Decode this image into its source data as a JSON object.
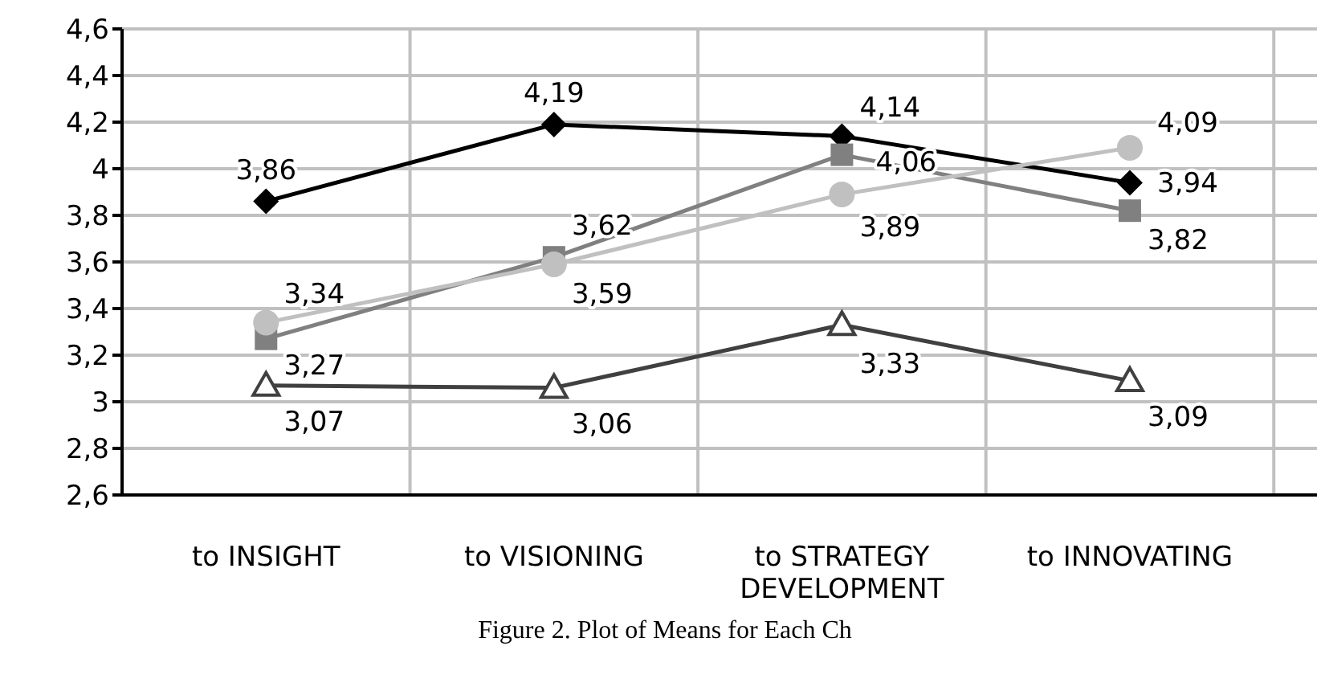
{
  "chart_data": {
    "type": "line",
    "categories": [
      "to INSIGHT",
      "to VISIONING",
      "to STRATEGY DEVELOPMENT",
      "to INNOVATING"
    ],
    "ylim": [
      2.6,
      4.6
    ],
    "yticks": [
      {
        "value": 2.6,
        "label": "2,6"
      },
      {
        "value": 2.8,
        "label": "2,8"
      },
      {
        "value": 3,
        "label": "3"
      },
      {
        "value": 3.2,
        "label": "3,2"
      },
      {
        "value": 3.4,
        "label": "3,4"
      },
      {
        "value": 3.6,
        "label": "3,6"
      },
      {
        "value": 3.8,
        "label": "3,8"
      },
      {
        "value": 4,
        "label": "4"
      },
      {
        "value": 4.2,
        "label": "4,2"
      },
      {
        "value": 4.4,
        "label": "4,4"
      },
      {
        "value": 4.6,
        "label": "4,6"
      }
    ],
    "grid": true,
    "series": [
      {
        "color": "#000000",
        "marker": "diamond",
        "values": [
          3.86,
          4.19,
          4.14,
          3.94
        ],
        "value_labels": [
          "3,86",
          "4,19",
          "4,14",
          "3,94"
        ]
      },
      {
        "color": "#808080",
        "marker": "square",
        "values": [
          3.27,
          3.62,
          4.06,
          3.82
        ],
        "value_labels": [
          "3,27",
          "3,62",
          "4,06",
          "3,82"
        ]
      },
      {
        "color": "#c0c0c0",
        "marker": "circle",
        "values": [
          3.34,
          3.59,
          3.89,
          4.09
        ],
        "value_labels": [
          "3,34",
          "3,59",
          "3,89",
          "4,09"
        ]
      },
      {
        "color": "#404040",
        "marker": "triangle",
        "values": [
          3.07,
          3.06,
          3.33,
          3.09
        ],
        "value_labels": [
          "3,07",
          "3,06",
          "3,33",
          "3,09"
        ]
      }
    ],
    "annotations": [
      "Figure 2. Plot of Means for Each Ch"
    ]
  }
}
